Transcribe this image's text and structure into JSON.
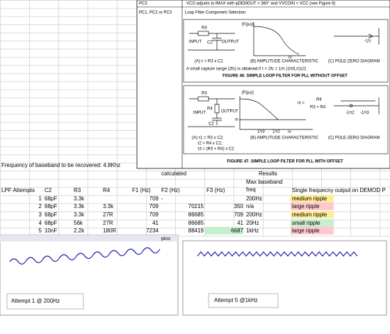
{
  "datasheet": {
    "top_left": "PC3",
    "top_text": "VCO adjusts to fMAX with φDEMOUT = 360° and VVCOIN = VCC (see Figure 6)",
    "row_label": "PC1, PC2 or PC3",
    "section_title": "Loop Filter Component Selection",
    "fig46": {
      "r3": "R3",
      "input": "INPUT",
      "c2": "C2",
      "output": "OUTPUT",
      "a": "(A) τ = R3 x C2",
      "f": "|F(jω)|",
      "w": "ω",
      "b": "(B) AMPLITUDE CHARACTERISTIC",
      "pole": "-1/τ",
      "c": "(C) POLE-ZERO DIAGRAM",
      "note": "A small capture range (2fc) is obtained if τ > 2fc = 1/π (2πfL/τ)1/2",
      "caption": "FIGURE 46.  SIMPLE LOOP FILTER FOR PLL WITHOUT OFFSET"
    },
    "fig47": {
      "r3": "R3",
      "r4": "R4",
      "input": "INPUT",
      "output": "OUTPUT",
      "c2": "C2",
      "f": "|F(jω)|",
      "m_eq": "m =",
      "num": "R4",
      "den": "R3 + R4",
      "m": "m",
      "t3": "1/τ3",
      "t2": "1/τ2",
      "w": "ω",
      "p2": "-1/τ2",
      "p3": "-1/τ3",
      "a1": "(A) τ1 = R3 x C2;",
      "a2": "τ2 = R4 x C2;",
      "a3": "τ3 = (R3 + R4) x C2",
      "b": "(B) AMPLITUDE CHARACTERISTIC",
      "c": "(C) POLE-ZERO DIAGRAM",
      "caption": "FIGURE 47.  SIMPLE LOOP FILTER FOR PLL WITH OFFSET"
    }
  },
  "note": "Frequency of baseband to be recovered: 4.8Khz",
  "table": {
    "group_calculated": "calculated",
    "group_results": "Results",
    "headers": [
      "LPF Attempts",
      "C2",
      "R3",
      "R4",
      "F1 (Hz)",
      "F2 (Hz)",
      "F3 (Hz)",
      "Max baseband freq",
      "Single frequecny output on DEMOD P"
    ],
    "rows": [
      {
        "attempt": 1,
        "c2": "68pF",
        "r3": "3.3k",
        "f1": 709,
        "f2": "-",
        "max": "200Hz",
        "output": "medium ripple"
      },
      {
        "attempt": 2,
        "c2": "68pF",
        "r3": "3.3k",
        "r4": "3.3k",
        "f1": 709,
        "f2": 70215,
        "f3": 350,
        "max": "n/a",
        "output": "large ripple"
      },
      {
        "attempt": 3,
        "c2": "68pF",
        "r3": "3.3k",
        "r4": "27R",
        "f1": 709,
        "f2": 86685,
        "f3": 709,
        "max": "200Hz",
        "output": "medium ripple"
      },
      {
        "attempt": 4,
        "c2": "68pF",
        "r3": "56k",
        "r4": "27R",
        "f1": 41,
        "f2": 86685,
        "f3": 41,
        "max": "20Hz",
        "output": "small ripple"
      },
      {
        "attempt": 5,
        "c2": "10nF",
        "r3": "2.2k",
        "r4": "180R",
        "f1": 7234,
        "f2": 88419,
        "f3": 6687,
        "max": "1kHz",
        "output": "large ripple"
      }
    ]
  },
  "scopes": {
    "brand": "pico",
    "caption1": "Attempt 1 @ 200Hz",
    "caption2": "Attempt 5 @1kHz"
  }
}
